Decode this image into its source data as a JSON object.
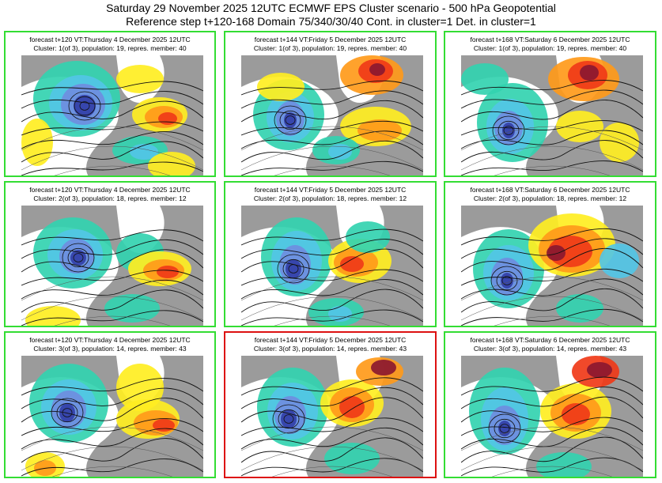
{
  "header": {
    "title_line1": "Saturday 29 November 2025 12UTC ECMWF EPS Cluster scenario - 500 hPa Geopotential",
    "title_line2": "Reference step t+120-168 Domain 75/340/30/40 Cont. in cluster=1 Det. in cluster=1"
  },
  "colors": {
    "panel_border": "#33dd33",
    "selected_border": "#dd1111",
    "land": "#9b9b9b",
    "ocean": "#ffffff",
    "neg_deep": "#3340a8",
    "neg_mid": "#6f8de0",
    "neg_light": "#53c6e6",
    "neg_faint": "#33d3b0",
    "neutral_green": "#22dd55",
    "pos_light": "#ffee22",
    "pos_mid": "#ff9a1a",
    "pos_strong": "#f03a18",
    "pos_deep": "#8b1830"
  },
  "panels": [
    {
      "caption1": "forecast t+120 VT:Thursday 4 December 2025 12UTC",
      "caption2": "Cluster: 1(of 3), population: 19, repres. member: 40",
      "selected": false
    },
    {
      "caption1": "forecast t+144 VT:Friday 5 December 2025 12UTC",
      "caption2": "Cluster: 1(of 3), population: 19, repres. member: 40",
      "selected": false
    },
    {
      "caption1": "forecast t+168 VT:Saturday 6 December 2025 12UTC",
      "caption2": "Cluster: 1(of 3), population: 19, repres. member: 40",
      "selected": false
    },
    {
      "caption1": "forecast t+120 VT:Thursday 4 December 2025 12UTC",
      "caption2": "Cluster: 2(of 3), population: 18, repres. member: 12",
      "selected": false
    },
    {
      "caption1": "forecast t+144 VT:Friday 5 December 2025 12UTC",
      "caption2": "Cluster: 2(of 3), population: 18, repres. member: 12",
      "selected": false
    },
    {
      "caption1": "forecast t+168 VT:Saturday 6 December 2025 12UTC",
      "caption2": "Cluster: 2(of 3), population: 18, repres. member: 12",
      "selected": false
    },
    {
      "caption1": "forecast t+120 VT:Thursday 4 December 2025 12UTC",
      "caption2": "Cluster: 3(of 3), population: 14, repres. member: 43",
      "selected": false
    },
    {
      "caption1": "forecast t+144 VT:Friday 5 December 2025 12UTC",
      "caption2": "Cluster: 3(of 3), population: 14, repres. member: 43",
      "selected": true
    },
    {
      "caption1": "forecast t+168 VT:Saturday 6 December 2025 12UTC",
      "caption2": "Cluster: 3(of 3), population: 14, repres. member: 43",
      "selected": false
    }
  ]
}
